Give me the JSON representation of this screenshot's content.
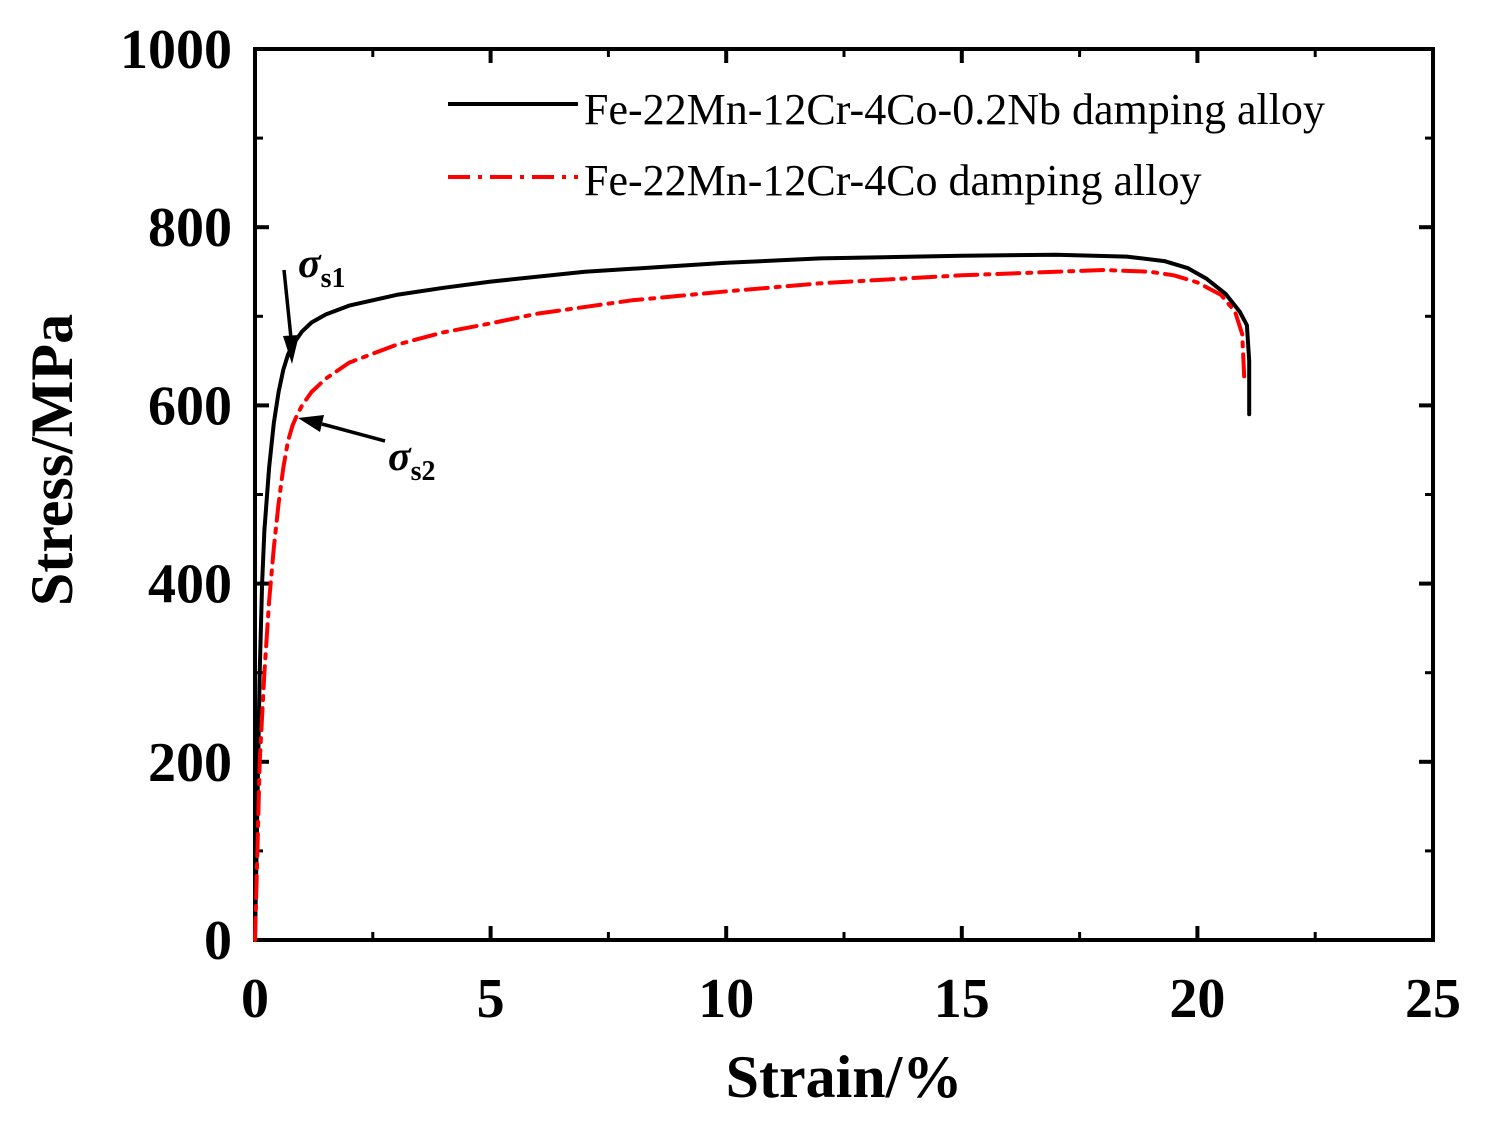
{
  "chart_data": {
    "type": "line",
    "title": "",
    "xlabel": "Strain/%",
    "ylabel": "Stress/MPa",
    "xlim": [
      0,
      25
    ],
    "ylim": [
      0,
      1000
    ],
    "xticks": [
      0,
      5,
      10,
      15,
      20,
      25
    ],
    "yticks": [
      0,
      200,
      400,
      600,
      800,
      1000
    ],
    "legend_position": "top-right",
    "series": [
      {
        "name": "Fe-22Mn-12Cr-4Co-0.2Nb damping alloy",
        "color": "#000000",
        "style": "solid",
        "x": [
          0,
          0.05,
          0.1,
          0.15,
          0.2,
          0.3,
          0.4,
          0.5,
          0.6,
          0.7,
          0.8,
          1.0,
          1.2,
          1.5,
          2.0,
          3.0,
          4.0,
          5.0,
          7.0,
          10.0,
          12.0,
          15.0,
          17.0,
          18.5,
          19.3,
          19.8,
          20.2,
          20.6,
          20.9,
          21.05,
          21.1,
          21.1
        ],
        "y": [
          0,
          150,
          300,
          400,
          460,
          530,
          580,
          615,
          640,
          657,
          668,
          683,
          693,
          702,
          712,
          724,
          732,
          739,
          750,
          760,
          765,
          768,
          769,
          767,
          762,
          754,
          742,
          725,
          705,
          690,
          650,
          590
        ]
      },
      {
        "name": "Fe-22Mn-12Cr-4Co damping alloy",
        "color": "#ff0000",
        "style": "dashdot",
        "x": [
          0,
          0.05,
          0.1,
          0.2,
          0.3,
          0.4,
          0.5,
          0.6,
          0.7,
          0.8,
          0.9,
          1.0,
          1.2,
          1.5,
          2.0,
          3.0,
          4.0,
          5.0,
          6.0,
          8.0,
          10.0,
          12.0,
          15.0,
          17.0,
          18.0,
          19.0,
          19.5,
          20.0,
          20.5,
          20.8,
          20.95,
          21.0
        ],
        "y": [
          0,
          100,
          200,
          300,
          380,
          440,
          490,
          530,
          560,
          578,
          590,
          600,
          615,
          630,
          648,
          668,
          682,
          692,
          703,
          718,
          728,
          737,
          746,
          750,
          752,
          750,
          746,
          738,
          724,
          705,
          680,
          625
        ]
      }
    ],
    "annotations": [
      {
        "label": "σ",
        "subscript": "s1",
        "x": 0.85,
        "y": 655
      },
      {
        "label": "σ",
        "subscript": "s2",
        "x": 0.95,
        "y": 588
      }
    ]
  }
}
